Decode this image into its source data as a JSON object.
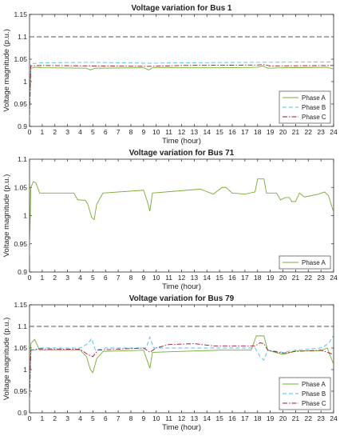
{
  "chart_data": [
    {
      "type": "line",
      "title": "Voltage variation for Bus 1",
      "xlabel": "Time (hour)",
      "ylabel": "Voltage magnitude (p.u.)",
      "xlim": [
        0,
        24
      ],
      "ylim": [
        0.9,
        1.15
      ],
      "xticks": [
        "0",
        "1",
        "2",
        "3",
        "4",
        "5",
        "6",
        "7",
        "8",
        "9",
        "10",
        "11",
        "12",
        "13",
        "14",
        "15",
        "16",
        "17",
        "18",
        "19",
        "20",
        "21",
        "22",
        "23",
        "24"
      ],
      "yticks": [
        "0.9",
        "0.95",
        "1",
        "1.05",
        "1.1",
        "1.15"
      ],
      "grid": false,
      "legend_position": "bottom-right",
      "reference_line": 1.1,
      "series": [
        {
          "name": "Phase A",
          "color": "#77ac30",
          "style": "solid",
          "points": [
            [
              0,
              0.92
            ],
            [
              0.1,
              1.03
            ],
            [
              0.5,
              1.032
            ],
            [
              1,
              1.031
            ],
            [
              4.5,
              1.03
            ],
            [
              4.8,
              1.026
            ],
            [
              5.2,
              1.03
            ],
            [
              9,
              1.031
            ],
            [
              9.4,
              1.026
            ],
            [
              9.7,
              1.031
            ],
            [
              15,
              1.031
            ],
            [
              18,
              1.032
            ],
            [
              18.4,
              1.035
            ],
            [
              18.8,
              1.03
            ],
            [
              20,
              1.031
            ],
            [
              23.5,
              1.032
            ],
            [
              24,
              1.028
            ]
          ]
        },
        {
          "name": "Phase B",
          "color": "#4dbeee",
          "style": "dashed",
          "points": [
            [
              0,
              0.93
            ],
            [
              0.1,
              1.04
            ],
            [
              1,
              1.042
            ],
            [
              5,
              1.043
            ],
            [
              9.5,
              1.041
            ],
            [
              12,
              1.042
            ],
            [
              18,
              1.043
            ],
            [
              24,
              1.044
            ]
          ]
        },
        {
          "name": "Phase C",
          "color": "#a2142f",
          "style": "dashdot",
          "points": [
            [
              0,
              0.925
            ],
            [
              0.1,
              1.035
            ],
            [
              1,
              1.036
            ],
            [
              5,
              1.035
            ],
            [
              9.5,
              1.034
            ],
            [
              12,
              1.036
            ],
            [
              18,
              1.037
            ],
            [
              18.4,
              1.038
            ],
            [
              19,
              1.035
            ],
            [
              24,
              1.036
            ]
          ]
        }
      ]
    },
    {
      "type": "line",
      "title": "Voltage variation for Bus 71",
      "xlabel": "Time (hour)",
      "ylabel": "Voltage magnitude (p.u.)",
      "xlim": [
        0,
        24
      ],
      "ylim": [
        0.9,
        1.1
      ],
      "xticks": [
        "0",
        "1",
        "2",
        "3",
        "4",
        "5",
        "6",
        "7",
        "8",
        "9",
        "10",
        "11",
        "12",
        "13",
        "14",
        "15",
        "16",
        "17",
        "18",
        "19",
        "20",
        "21",
        "22",
        "23",
        "24"
      ],
      "yticks": [
        "0.9",
        "0.95",
        "1",
        "1.05",
        "1.1"
      ],
      "grid": false,
      "legend_position": "bottom-right",
      "reference_line": 1.1,
      "series": [
        {
          "name": "Phase A",
          "color": "#77ac30",
          "style": "solid",
          "points": [
            [
              0,
              0.93
            ],
            [
              0.1,
              1.05
            ],
            [
              0.3,
              1.06
            ],
            [
              0.5,
              1.058
            ],
            [
              0.8,
              1.04
            ],
            [
              3.5,
              1.04
            ],
            [
              3.8,
              1.028
            ],
            [
              4.4,
              1.027
            ],
            [
              4.6,
              1.02
            ],
            [
              4.9,
              0.997
            ],
            [
              5.1,
              0.993
            ],
            [
              5.3,
              1.02
            ],
            [
              5.8,
              1.04
            ],
            [
              9,
              1.045
            ],
            [
              9.3,
              1.025
            ],
            [
              9.5,
              1.008
            ],
            [
              9.7,
              1.04
            ],
            [
              13.5,
              1.047
            ],
            [
              14.5,
              1.038
            ],
            [
              15.2,
              1.05
            ],
            [
              15.5,
              1.05
            ],
            [
              16,
              1.04
            ],
            [
              17,
              1.038
            ],
            [
              17.8,
              1.042
            ],
            [
              18,
              1.065
            ],
            [
              18.5,
              1.065
            ],
            [
              18.7,
              1.04
            ],
            [
              19.5,
              1.04
            ],
            [
              19.8,
              1.028
            ],
            [
              20.2,
              1.032
            ],
            [
              20.5,
              1.032
            ],
            [
              20.7,
              1.025
            ],
            [
              21,
              1.025
            ],
            [
              21.3,
              1.04
            ],
            [
              21.7,
              1.033
            ],
            [
              22.8,
              1.038
            ],
            [
              23.3,
              1.042
            ],
            [
              23.6,
              1.035
            ],
            [
              24,
              1.006
            ]
          ]
        }
      ]
    },
    {
      "type": "line",
      "title": "Voltage variation for Bus 79",
      "xlabel": "Time (hour)",
      "ylabel": "Voltage magnitude (p.u.)",
      "xlim": [
        0,
        24
      ],
      "ylim": [
        0.9,
        1.15
      ],
      "xticks": [
        "0",
        "1",
        "2",
        "3",
        "4",
        "5",
        "6",
        "7",
        "8",
        "9",
        "10",
        "11",
        "12",
        "13",
        "14",
        "15",
        "16",
        "17",
        "18",
        "19",
        "20",
        "21",
        "22",
        "23",
        "24"
      ],
      "yticks": [
        "0.9",
        "0.95",
        "1",
        "1.05",
        "1.1",
        "1.15"
      ],
      "grid": false,
      "legend_position": "bottom-right",
      "reference_line": 1.1,
      "series": [
        {
          "name": "Phase A",
          "color": "#77ac30",
          "style": "solid",
          "points": [
            [
              0,
              0.93
            ],
            [
              0.1,
              1.06
            ],
            [
              0.4,
              1.07
            ],
            [
              0.8,
              1.045
            ],
            [
              4,
              1.045
            ],
            [
              4.5,
              1.03
            ],
            [
              4.8,
              1.0
            ],
            [
              5,
              0.993
            ],
            [
              5.3,
              1.025
            ],
            [
              5.8,
              1.042
            ],
            [
              9,
              1.045
            ],
            [
              9.3,
              1.02
            ],
            [
              9.5,
              1.003
            ],
            [
              9.7,
              1.04
            ],
            [
              15,
              1.045
            ],
            [
              17.5,
              1.045
            ],
            [
              17.9,
              1.078
            ],
            [
              18.5,
              1.078
            ],
            [
              18.8,
              1.045
            ],
            [
              20,
              1.035
            ],
            [
              21,
              1.043
            ],
            [
              23,
              1.044
            ],
            [
              23.5,
              1.05
            ],
            [
              24,
              1.012
            ]
          ]
        },
        {
          "name": "Phase B",
          "color": "#4dbeee",
          "style": "dashed",
          "points": [
            [
              0,
              0.93
            ],
            [
              0.1,
              1.04
            ],
            [
              0.8,
              1.05
            ],
            [
              4,
              1.05
            ],
            [
              4.6,
              1.06
            ],
            [
              4.9,
              1.072
            ],
            [
              5.2,
              1.045
            ],
            [
              6,
              1.05
            ],
            [
              9.2,
              1.05
            ],
            [
              9.5,
              1.075
            ],
            [
              9.8,
              1.05
            ],
            [
              17.8,
              1.05
            ],
            [
              18.2,
              1.03
            ],
            [
              18.5,
              1.022
            ],
            [
              18.8,
              1.045
            ],
            [
              20,
              1.04
            ],
            [
              21,
              1.045
            ],
            [
              23,
              1.05
            ],
            [
              23.6,
              1.06
            ],
            [
              24,
              1.08
            ]
          ]
        },
        {
          "name": "Phase C",
          "color": "#a2142f",
          "style": "dashdot",
          "points": [
            [
              0,
              0.935
            ],
            [
              0.1,
              1.045
            ],
            [
              0.8,
              1.048
            ],
            [
              4,
              1.047
            ],
            [
              4.6,
              1.035
            ],
            [
              5,
              1.03
            ],
            [
              5.4,
              1.045
            ],
            [
              9,
              1.05
            ],
            [
              9.5,
              1.04
            ],
            [
              10,
              1.05
            ],
            [
              11,
              1.058
            ],
            [
              13,
              1.06
            ],
            [
              14.5,
              1.055
            ],
            [
              17.8,
              1.055
            ],
            [
              18.2,
              1.062
            ],
            [
              18.5,
              1.06
            ],
            [
              18.8,
              1.045
            ],
            [
              20,
              1.038
            ],
            [
              21,
              1.042
            ],
            [
              23,
              1.045
            ],
            [
              24,
              1.035
            ]
          ]
        }
      ]
    }
  ]
}
